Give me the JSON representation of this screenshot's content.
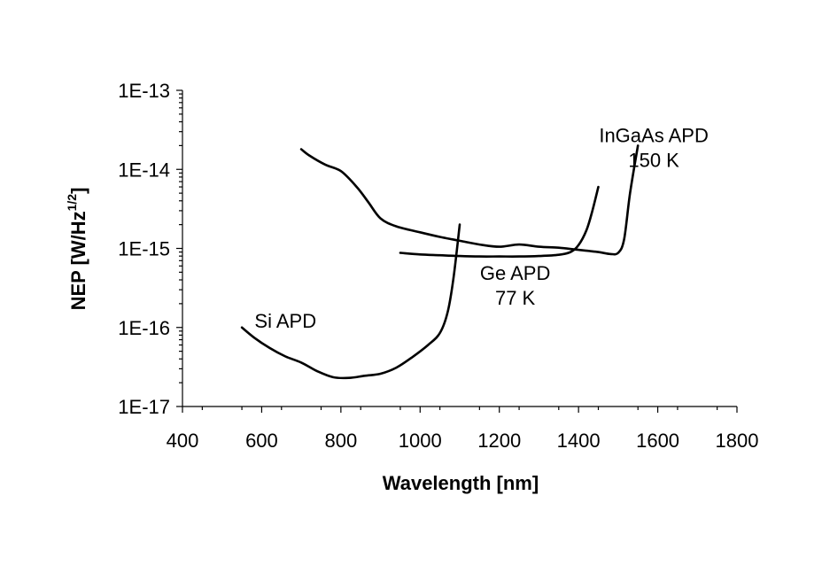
{
  "chart_data": {
    "type": "line",
    "title": "",
    "xlabel": "Wavelength [nm]",
    "ylabel_main": "NEP [W/Hz",
    "ylabel_sup": "1/2",
    "ylabel_end": "]",
    "xlim": [
      400,
      1800
    ],
    "ylim": [
      1e-17,
      1e-13
    ],
    "yscale": "log",
    "grid": false,
    "x_ticks": [
      400,
      600,
      800,
      1000,
      1200,
      1400,
      1600,
      1800
    ],
    "x_tick_labels": [
      "400",
      "600",
      "800",
      "1000",
      "1200",
      "1400",
      "1600",
      "1800"
    ],
    "y_ticks": [
      1e-17,
      1e-16,
      1e-15,
      1e-14,
      1e-13
    ],
    "y_tick_labels": [
      "1E-17",
      "1E-16",
      "1E-15",
      "1E-14",
      "1E-13"
    ],
    "series": [
      {
        "points": [
          [
            550,
            1e-16
          ],
          [
            580,
            7.5e-17
          ],
          [
            620,
            5.5e-17
          ],
          [
            660,
            4.3e-17
          ],
          [
            700,
            3.6e-17
          ],
          [
            740,
            2.8e-17
          ],
          [
            780,
            2.35e-17
          ],
          [
            820,
            2.3e-17
          ],
          [
            860,
            2.45e-17
          ],
          [
            900,
            2.6e-17
          ],
          [
            940,
            3.1e-17
          ],
          [
            980,
            4.2e-17
          ],
          [
            1020,
            6e-17
          ],
          [
            1050,
            8.5e-17
          ],
          [
            1070,
            1.6e-16
          ],
          [
            1085,
            4.5e-16
          ],
          [
            1100,
            2e-15
          ]
        ]
      },
      {
        "points": [
          [
            700,
            1.8e-14
          ],
          [
            720,
            1.5e-14
          ],
          [
            760,
            1.15e-14
          ],
          [
            800,
            9.5e-15
          ],
          [
            840,
            6e-15
          ],
          [
            870,
            3.8e-15
          ],
          [
            900,
            2.4e-15
          ],
          [
            940,
            1.9e-15
          ],
          [
            1000,
            1.6e-15
          ],
          [
            1050,
            1.4e-15
          ],
          [
            1100,
            1.25e-15
          ],
          [
            1150,
            1.12e-15
          ],
          [
            1200,
            1.05e-15
          ],
          [
            1250,
            1.12e-15
          ],
          [
            1300,
            1.05e-15
          ],
          [
            1350,
            1.02e-15
          ],
          [
            1400,
            9.6e-16
          ],
          [
            1450,
            9e-16
          ],
          [
            1480,
            8.5e-16
          ],
          [
            1500,
            8.8e-16
          ],
          [
            1515,
            1.3e-15
          ],
          [
            1530,
            5e-15
          ],
          [
            1550,
            2e-14
          ]
        ]
      },
      {
        "points": [
          [
            950,
            8.8e-16
          ],
          [
            1000,
            8.4e-16
          ],
          [
            1050,
            8.2e-16
          ],
          [
            1100,
            8e-16
          ],
          [
            1150,
            7.9e-16
          ],
          [
            1200,
            7.9e-16
          ],
          [
            1250,
            7.9e-16
          ],
          [
            1300,
            8e-16
          ],
          [
            1350,
            8.3e-16
          ],
          [
            1380,
            9e-16
          ],
          [
            1400,
            1.1e-15
          ],
          [
            1420,
            1.7e-15
          ],
          [
            1435,
            3e-15
          ],
          [
            1450,
            6e-15
          ]
        ]
      }
    ],
    "annotations": [
      {
        "lines": [
          "Si APD"
        ],
        "x": 660,
        "y": 1e-16
      },
      {
        "lines": [
          "Ge APD",
          "77 K"
        ],
        "x": 1240,
        "y": 4e-16
      },
      {
        "lines": [
          "InGaAs APD",
          "150 K"
        ],
        "x": 1590,
        "y": 2.2e-14
      }
    ]
  }
}
